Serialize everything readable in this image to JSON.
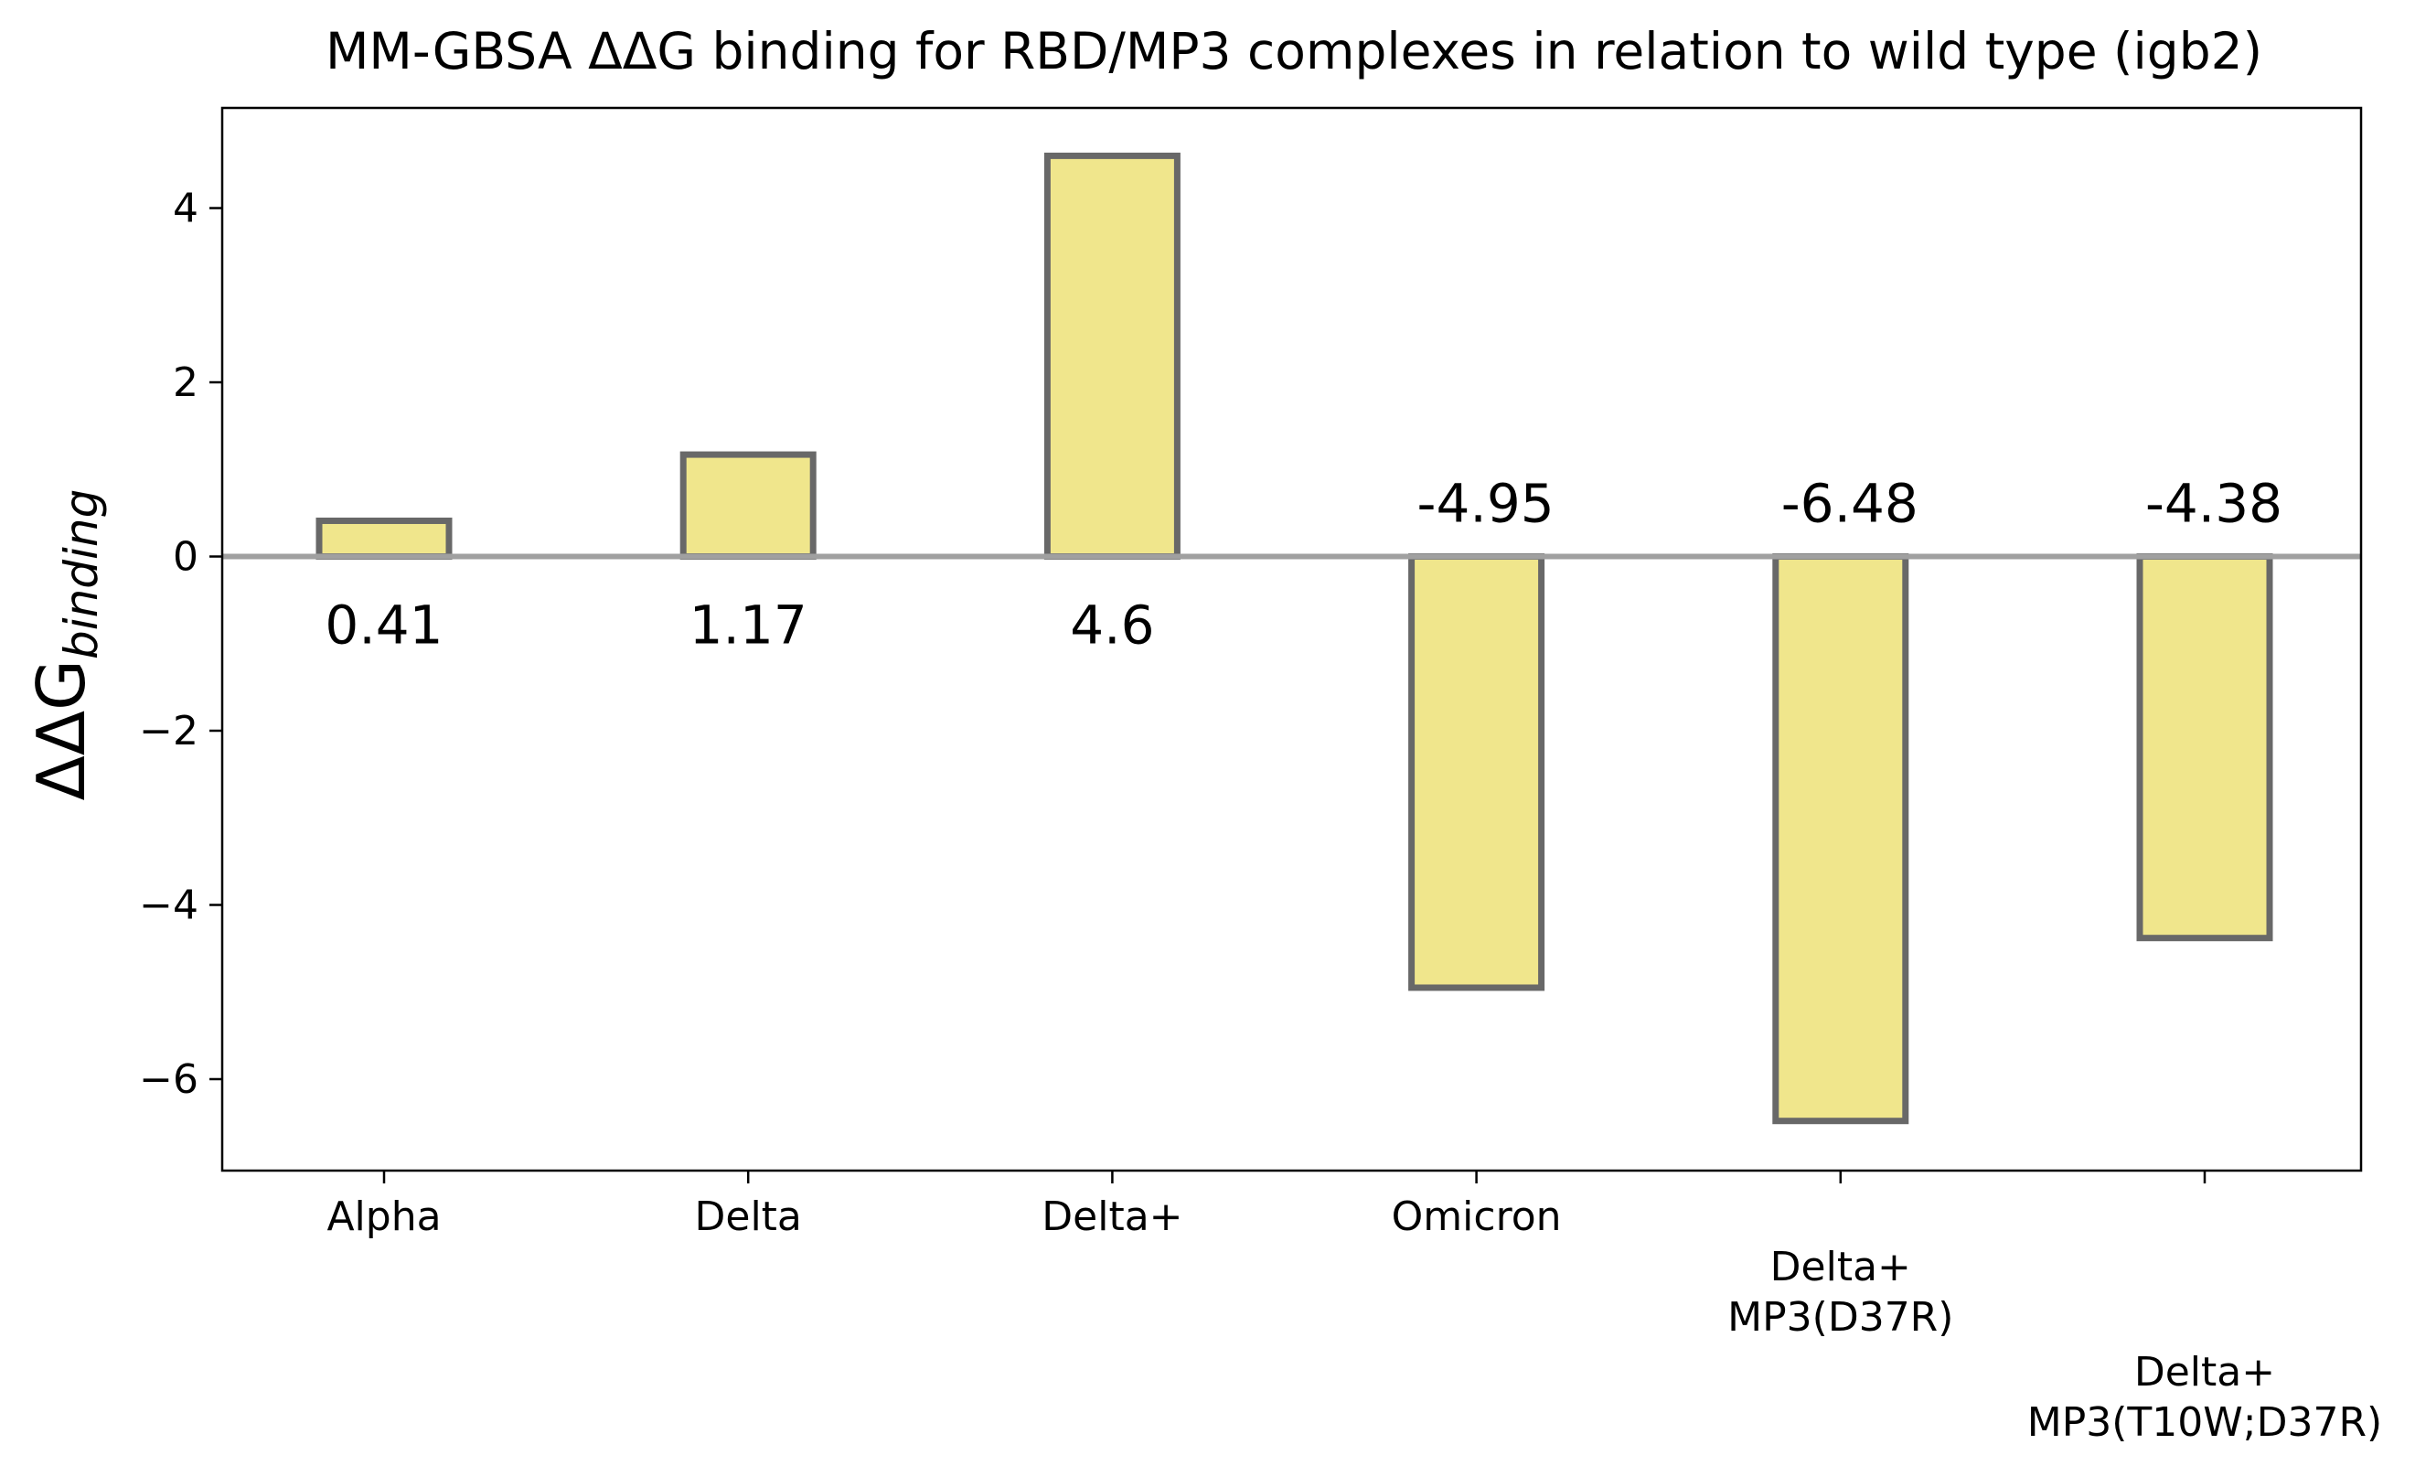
{
  "chart_data": {
    "type": "bar",
    "title": "MM-GBSA ΔΔG binding for RBD/MP3 complexes in relation to wild type (igb2)",
    "ylabel_main": "ΔΔG",
    "ylabel_sub": "binding",
    "xlabel": "",
    "categories": [
      [
        "Alpha"
      ],
      [
        "Delta"
      ],
      [
        "Delta+"
      ],
      [
        "Omicron"
      ],
      [
        "Delta+",
        "MP3(D37R)"
      ],
      [
        "Delta+",
        "MP3(T10W;D37R)"
      ]
    ],
    "category_label_row": [
      0,
      0,
      0,
      0,
      1,
      2
    ],
    "values": [
      0.41,
      1.17,
      4.6,
      -4.95,
      -6.48,
      -4.38
    ],
    "data_labels": [
      "0.41",
      "1.17",
      "4.6",
      "-4.95",
      "-6.48",
      "-4.38"
    ],
    "ylim": [
      -7.05,
      5.15
    ],
    "yticks": [
      -6,
      -4,
      -2,
      0,
      2,
      4
    ],
    "ytick_labels": [
      "−6",
      "−4",
      "−2",
      "0",
      "2",
      "4"
    ],
    "zero_line": true,
    "grid": false,
    "legend": "none",
    "colors": {
      "bar_fill": "#F0E68C",
      "bar_edge": "#686868",
      "zero_line": "#A0A0A0",
      "axes": "#000000"
    }
  }
}
